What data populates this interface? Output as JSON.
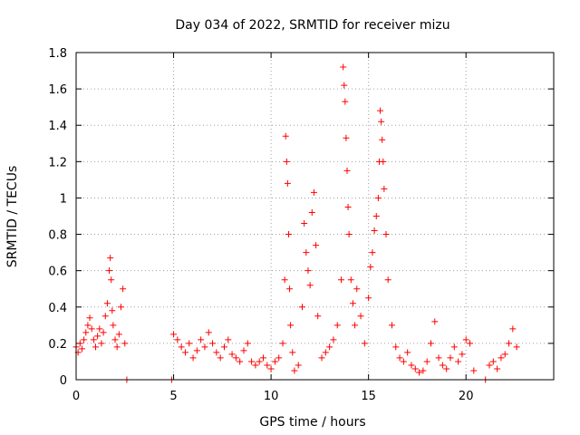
{
  "chart_data": {
    "type": "scatter",
    "title": "Day 034 of 2022, SRMTID for receiver mizu",
    "xlabel": "GPS time / hours",
    "ylabel": "SRMTID / TECUs",
    "xlim": [
      0,
      24.5
    ],
    "ylim": [
      0,
      1.8
    ],
    "xticks": [
      0,
      5,
      10,
      15,
      20
    ],
    "yticks": [
      0,
      0.2,
      0.4,
      0.6,
      0.8,
      1,
      1.2,
      1.4,
      1.6,
      1.8
    ],
    "xtick_labels": [
      "0",
      "5",
      "10",
      "15",
      "20"
    ],
    "ytick_labels": [
      "0",
      "0.2",
      "0.4",
      "0.6",
      "0.8",
      "1",
      "1.2",
      "1.4",
      "1.6",
      "1.8"
    ],
    "grid": true,
    "marker": "+",
    "color": "#ff0000",
    "series": [
      {
        "name": "SRMTID",
        "x": [
          0.0,
          0.1,
          0.2,
          0.3,
          0.4,
          0.5,
          0.6,
          0.7,
          0.8,
          0.9,
          1.0,
          1.1,
          1.2,
          1.3,
          1.4,
          1.5,
          1.6,
          1.7,
          1.75,
          1.8,
          1.85,
          1.9,
          2.0,
          2.1,
          2.2,
          2.3,
          2.4,
          2.5,
          2.6,
          4.9,
          5.0,
          5.2,
          5.4,
          5.6,
          5.8,
          6.0,
          6.2,
          6.4,
          6.6,
          6.8,
          7.0,
          7.2,
          7.4,
          7.6,
          7.8,
          8.0,
          8.2,
          8.4,
          8.6,
          8.8,
          9.0,
          9.2,
          9.4,
          9.6,
          9.8,
          10.0,
          10.2,
          10.4,
          10.6,
          10.7,
          10.75,
          10.8,
          10.85,
          10.9,
          10.95,
          11.0,
          11.1,
          11.2,
          11.4,
          11.6,
          11.7,
          11.8,
          11.9,
          12.0,
          12.1,
          12.2,
          12.3,
          12.4,
          12.6,
          12.8,
          13.0,
          13.2,
          13.4,
          13.6,
          13.7,
          13.75,
          13.8,
          13.85,
          13.9,
          13.95,
          14.0,
          14.1,
          14.2,
          14.3,
          14.4,
          14.6,
          14.8,
          15.0,
          15.1,
          15.2,
          15.3,
          15.4,
          15.5,
          15.55,
          15.6,
          15.65,
          15.7,
          15.75,
          15.8,
          15.9,
          16.0,
          16.2,
          16.4,
          16.6,
          16.8,
          17.0,
          17.2,
          17.4,
          17.6,
          17.8,
          18.0,
          18.2,
          18.4,
          18.6,
          18.8,
          19.0,
          19.2,
          19.4,
          19.6,
          19.8,
          20.0,
          20.2,
          20.4,
          21.0,
          21.2,
          21.4,
          21.6,
          21.8,
          22.0,
          22.2,
          22.4,
          22.6
        ],
        "y": [
          0.18,
          0.15,
          0.2,
          0.17,
          0.22,
          0.26,
          0.3,
          0.34,
          0.28,
          0.22,
          0.18,
          0.24,
          0.28,
          0.2,
          0.26,
          0.35,
          0.42,
          0.6,
          0.67,
          0.55,
          0.38,
          0.3,
          0.22,
          0.18,
          0.25,
          0.4,
          0.5,
          0.2,
          0.0,
          0.0,
          0.25,
          0.22,
          0.18,
          0.15,
          0.2,
          0.12,
          0.16,
          0.22,
          0.18,
          0.26,
          0.2,
          0.15,
          0.12,
          0.18,
          0.22,
          0.14,
          0.12,
          0.1,
          0.16,
          0.2,
          0.1,
          0.08,
          0.1,
          0.12,
          0.08,
          0.06,
          0.1,
          0.12,
          0.2,
          0.55,
          1.34,
          1.2,
          1.08,
          0.8,
          0.5,
          0.3,
          0.15,
          0.05,
          0.08,
          0.4,
          0.86,
          0.7,
          0.6,
          0.52,
          0.92,
          1.03,
          0.74,
          0.35,
          0.12,
          0.15,
          0.18,
          0.22,
          0.3,
          0.55,
          1.72,
          1.62,
          1.53,
          1.33,
          1.15,
          0.95,
          0.8,
          0.55,
          0.42,
          0.3,
          0.5,
          0.35,
          0.2,
          0.45,
          0.62,
          0.7,
          0.82,
          0.9,
          1.0,
          1.2,
          1.48,
          1.42,
          1.32,
          1.2,
          1.05,
          0.8,
          0.55,
          0.3,
          0.18,
          0.12,
          0.1,
          0.15,
          0.08,
          0.06,
          0.04,
          0.05,
          0.1,
          0.2,
          0.32,
          0.12,
          0.08,
          0.06,
          0.12,
          0.18,
          0.1,
          0.14,
          0.22,
          0.2,
          0.05,
          0.0,
          0.08,
          0.1,
          0.06,
          0.12,
          0.14,
          0.2,
          0.28,
          0.18
        ]
      }
    ]
  }
}
